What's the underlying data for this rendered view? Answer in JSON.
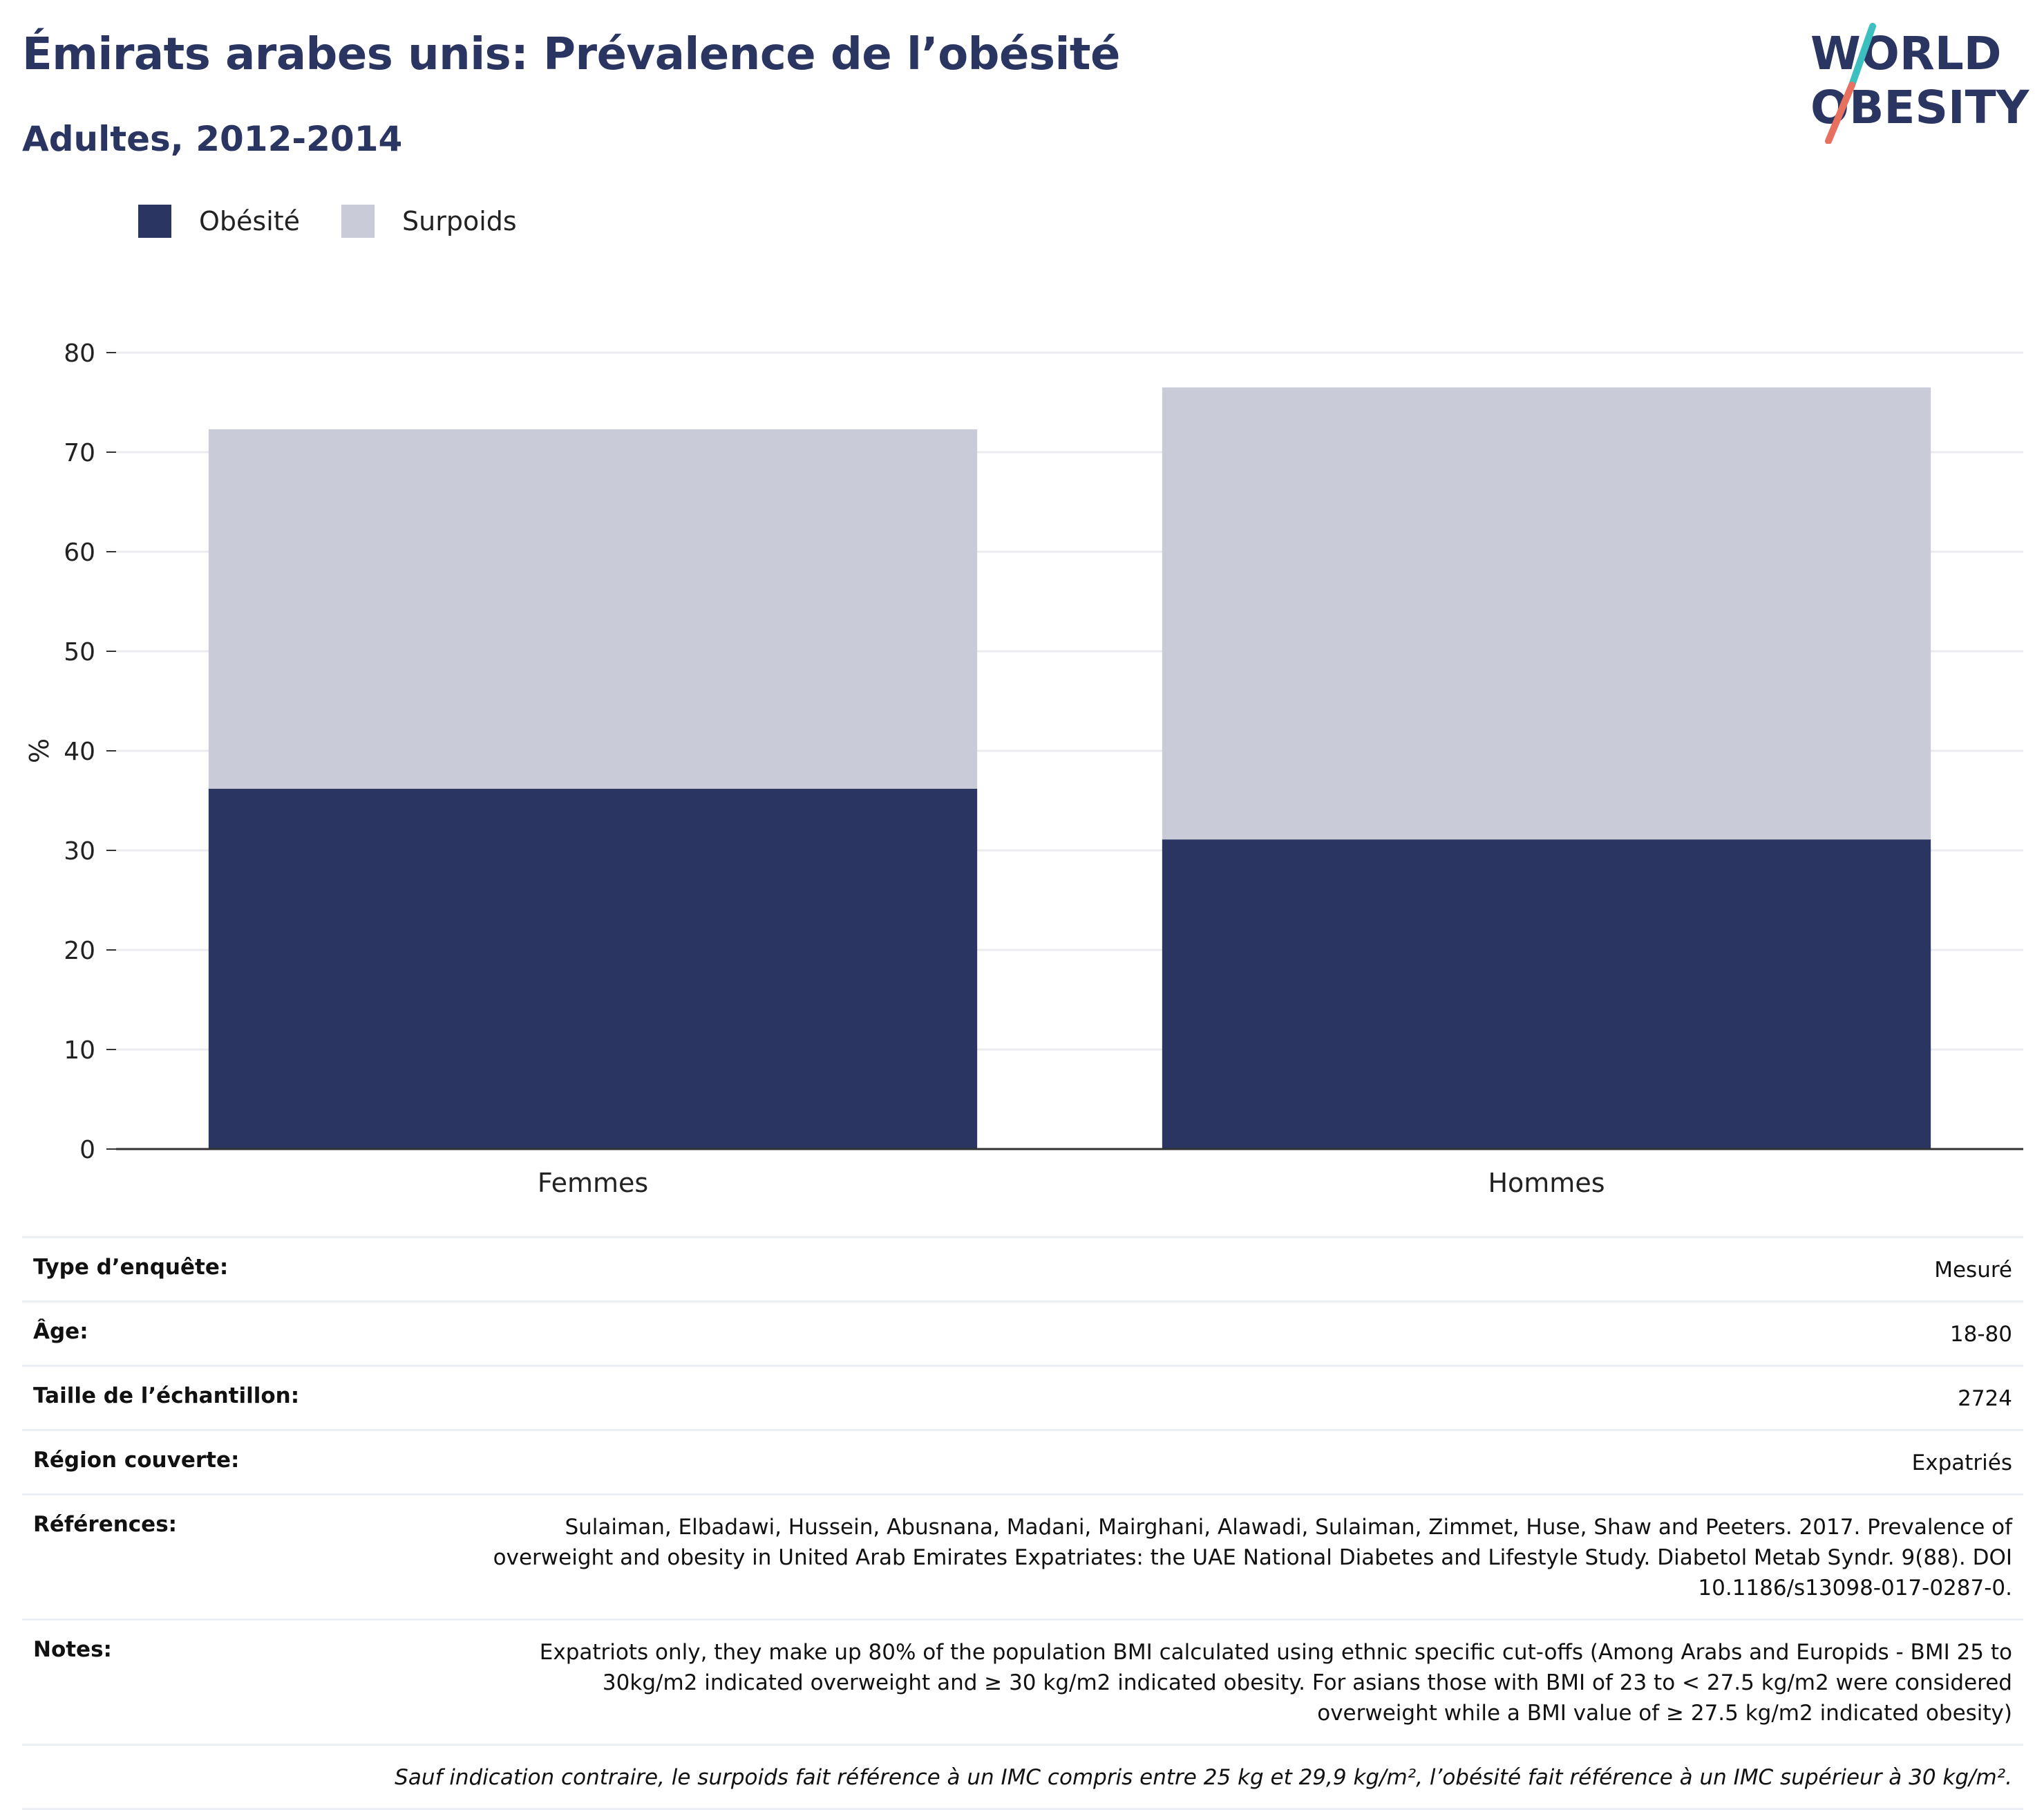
{
  "header": {
    "title": "Émirats arabes unis: Prévalence de l’obésité",
    "subtitle": "Adultes, 2012-2014"
  },
  "logo": {
    "line1": "WORLD",
    "line2": "OBESITY",
    "colors": {
      "text": "#2a3561",
      "teal": "#3bbfbf",
      "coral": "#e8705e"
    }
  },
  "legend": [
    {
      "label": "Obésité",
      "color": "#2a3561"
    },
    {
      "label": "Surpoids",
      "color": "#c9ccd8"
    }
  ],
  "chart_data": {
    "type": "bar",
    "stacked": true,
    "categories": [
      "Femmes",
      "Hommes"
    ],
    "series": [
      {
        "name": "Obésité",
        "values": [
          36.2,
          31.1
        ],
        "color": "#2a3561"
      },
      {
        "name": "Surpoids",
        "values": [
          36.1,
          45.4
        ],
        "color": "#c9ccd8"
      }
    ],
    "ylabel": "%",
    "ylim": [
      0,
      80
    ],
    "yticks": [
      0,
      10,
      20,
      30,
      40,
      50,
      60,
      70,
      80
    ],
    "grid": true,
    "legend_position": "top-left"
  },
  "meta": [
    {
      "key": "Type d’enquête:",
      "value": "Mesuré"
    },
    {
      "key": "Âge:",
      "value": "18-80"
    },
    {
      "key": "Taille de l’échantillon:",
      "value": "2724"
    },
    {
      "key": "Région couverte:",
      "value": "Expatriés"
    },
    {
      "key": "Références:",
      "value": "Sulaiman, Elbadawi, Hussein, Abusnana, Madani, Mairghani, Alawadi, Sulaiman, Zimmet, Huse, Shaw and Peeters. 2017. Prevalence of overweight and obesity in United Arab Emirates Expatriates: the UAE National Diabetes and Lifestyle Study. Diabetol Metab Syndr. 9(88). DOI 10.1186/s13098-017-0287-0."
    },
    {
      "key": "Notes:",
      "value": "Expatriots only, they make up 80% of the population BMI calculated using ethnic specific cut-offs (Among Arabs and Europids - BMI 25 to 30kg/m2 indicated overweight and ≥ 30 kg/m2 indicated obesity. For asians those with BMI of 23 to < 27.5 kg/m2 were considered overweight while a BMI value of ≥ 27.5 kg/m2 indicated obesity)"
    }
  ],
  "footnote": "Sauf indication contraire, le surpoids fait référence à un IMC compris entre 25 kg et 29,9 kg/m², l’obésité fait référence à un IMC supérieur à 30 kg/m²."
}
